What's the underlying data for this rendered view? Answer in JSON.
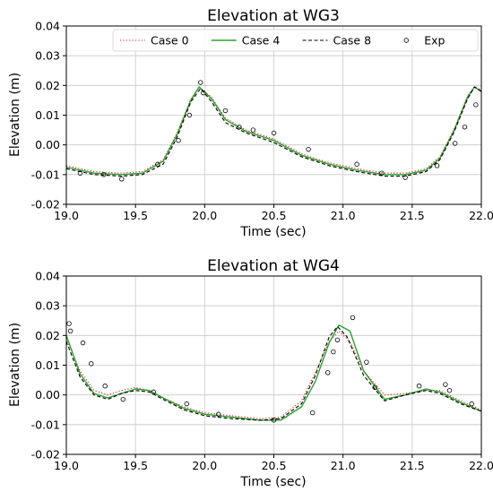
{
  "chart_data": [
    {
      "type": "line",
      "title": "Elevation at WG3",
      "xlabel": "Time (sec)",
      "ylabel": "Elevation (m)",
      "xlim": [
        19.0,
        22.0
      ],
      "ylim": [
        -0.02,
        0.04
      ],
      "xticks": [
        "19.0",
        "19.5",
        "20.0",
        "20.5",
        "21.0",
        "21.5",
        "22.0"
      ],
      "yticks": [
        "-0.02",
        "-0.01",
        "0.00",
        "0.01",
        "0.02",
        "0.03",
        "0.04"
      ],
      "grid": true,
      "legend": "top-right",
      "series": [
        {
          "name": "Case 0",
          "style": "dotted",
          "color": "#d62728",
          "x": [
            19.0,
            19.2,
            19.4,
            19.55,
            19.7,
            19.8,
            19.9,
            19.96,
            20.05,
            20.15,
            20.3,
            20.5,
            20.7,
            20.9,
            21.1,
            21.3,
            21.45,
            21.6,
            21.7,
            21.8,
            21.9,
            21.95,
            22.0
          ],
          "y": [
            -0.007,
            -0.009,
            -0.0095,
            -0.009,
            -0.005,
            0.004,
            0.0155,
            0.0195,
            0.016,
            0.009,
            0.005,
            0.002,
            -0.003,
            -0.006,
            -0.008,
            -0.0095,
            -0.0095,
            -0.008,
            -0.004,
            0.005,
            0.0165,
            0.0195,
            0.0185
          ]
        },
        {
          "name": "Case 4",
          "style": "solid",
          "color": "#2ca02c",
          "x": [
            19.0,
            19.2,
            19.4,
            19.55,
            19.7,
            19.8,
            19.9,
            19.96,
            20.05,
            20.15,
            20.3,
            20.5,
            20.7,
            20.9,
            21.1,
            21.3,
            21.45,
            21.6,
            21.7,
            21.8,
            21.9,
            21.95,
            22.0
          ],
          "y": [
            -0.0075,
            -0.0095,
            -0.01,
            -0.0095,
            -0.0055,
            0.0035,
            0.015,
            0.0195,
            0.0155,
            0.0085,
            0.0045,
            0.0015,
            -0.0035,
            -0.0065,
            -0.0085,
            -0.01,
            -0.01,
            -0.0085,
            -0.0045,
            0.0045,
            0.016,
            0.0195,
            0.018
          ]
        },
        {
          "name": "Case 8",
          "style": "dashed",
          "color": "#000000",
          "x": [
            19.0,
            19.2,
            19.4,
            19.55,
            19.7,
            19.8,
            19.9,
            19.97,
            20.05,
            20.15,
            20.3,
            20.5,
            20.7,
            20.9,
            21.1,
            21.3,
            21.45,
            21.6,
            21.7,
            21.8,
            21.9,
            21.95,
            22.0
          ],
          "y": [
            -0.008,
            -0.01,
            -0.0105,
            -0.01,
            -0.0065,
            0.0025,
            0.0145,
            0.019,
            0.0145,
            0.0075,
            0.004,
            0.0008,
            -0.004,
            -0.007,
            -0.009,
            -0.0105,
            -0.0105,
            -0.009,
            -0.005,
            0.004,
            0.0155,
            0.0195,
            0.018
          ]
        },
        {
          "name": "Exp",
          "style": "markers",
          "color": "#000000",
          "x": [
            19.1,
            19.27,
            19.4,
            19.66,
            19.81,
            19.89,
            19.97,
            19.99,
            20.15,
            20.25,
            20.35,
            20.5,
            20.75,
            21.1,
            21.28,
            21.45,
            21.68,
            21.81,
            21.88,
            21.96
          ],
          "y": [
            -0.0095,
            -0.01,
            -0.0115,
            -0.0065,
            0.0015,
            0.01,
            0.021,
            0.0175,
            0.0115,
            0.006,
            0.005,
            0.004,
            -0.0015,
            -0.0065,
            -0.0095,
            -0.011,
            -0.007,
            0.0005,
            0.006,
            0.0135
          ]
        }
      ]
    },
    {
      "type": "line",
      "title": "Elevation at WG4",
      "xlabel": "Time (sec)",
      "ylabel": "Elevation (m)",
      "xlim": [
        19.0,
        22.0
      ],
      "ylim": [
        -0.02,
        0.04
      ],
      "xticks": [
        "19.0",
        "19.5",
        "20.0",
        "20.5",
        "21.0",
        "21.5",
        "22.0"
      ],
      "yticks": [
        "-0.02",
        "-0.01",
        "0.00",
        "0.01",
        "0.02",
        "0.03",
        "0.04"
      ],
      "grid": true,
      "series": [
        {
          "name": "Case 0",
          "style": "dotted",
          "color": "#d62728",
          "x": [
            19.0,
            19.1,
            19.2,
            19.3,
            19.4,
            19.5,
            19.6,
            19.7,
            19.85,
            20.0,
            20.2,
            20.4,
            20.55,
            20.7,
            20.8,
            20.9,
            20.97,
            21.05,
            21.15,
            21.3,
            21.45,
            21.6,
            21.7,
            21.85,
            22.0
          ],
          "y": [
            0.019,
            0.008,
            0.0015,
            0.0,
            0.0015,
            0.0025,
            0.0015,
            -0.001,
            -0.004,
            -0.006,
            -0.007,
            -0.008,
            -0.0075,
            -0.002,
            0.0075,
            0.018,
            0.0215,
            0.018,
            0.008,
            0.0,
            0.0005,
            0.0015,
            0.0015,
            -0.002,
            -0.005
          ]
        },
        {
          "name": "Case 4",
          "style": "solid",
          "color": "#2ca02c",
          "x": [
            19.0,
            19.1,
            19.2,
            19.3,
            19.4,
            19.5,
            19.6,
            19.7,
            19.85,
            20.0,
            20.2,
            20.4,
            20.55,
            20.7,
            20.8,
            20.9,
            20.97,
            21.05,
            21.15,
            21.3,
            21.45,
            21.6,
            21.7,
            21.85,
            22.0
          ],
          "y": [
            0.02,
            0.007,
            0.0005,
            -0.001,
            0.0005,
            0.002,
            0.0015,
            -0.001,
            -0.0045,
            -0.0065,
            -0.0075,
            -0.0085,
            -0.0085,
            -0.004,
            0.0045,
            0.0175,
            0.0235,
            0.0215,
            0.008,
            -0.0015,
            0.0,
            0.002,
            0.001,
            -0.0025,
            -0.0055
          ]
        },
        {
          "name": "Case 8",
          "style": "dashed",
          "color": "#000000",
          "x": [
            19.0,
            19.1,
            19.2,
            19.3,
            19.4,
            19.5,
            19.6,
            19.7,
            19.85,
            20.0,
            20.2,
            20.4,
            20.55,
            20.7,
            20.8,
            20.9,
            20.96,
            21.03,
            21.15,
            21.3,
            21.45,
            21.6,
            21.7,
            21.85,
            22.0
          ],
          "y": [
            0.018,
            0.006,
            0.0,
            -0.0015,
            0.0005,
            0.0015,
            0.001,
            -0.0015,
            -0.005,
            -0.007,
            -0.008,
            -0.0085,
            -0.008,
            -0.003,
            0.0065,
            0.0195,
            0.023,
            0.0195,
            0.0065,
            -0.002,
            0.0,
            0.0015,
            0.0005,
            -0.003,
            -0.0055
          ]
        },
        {
          "name": "Exp",
          "style": "markers",
          "color": "#000000",
          "x": [
            19.02,
            19.03,
            19.12,
            19.18,
            19.28,
            19.41,
            19.63,
            19.87,
            20.1,
            20.5,
            20.78,
            20.89,
            20.93,
            20.96,
            21.07,
            21.17,
            21.23,
            21.55,
            21.74,
            21.77,
            21.93
          ],
          "y": [
            0.024,
            0.0215,
            0.0175,
            0.0105,
            0.003,
            -0.0015,
            0.001,
            -0.003,
            -0.0065,
            -0.0085,
            -0.006,
            0.0075,
            0.0145,
            0.0185,
            0.026,
            0.011,
            0.0025,
            0.003,
            0.0035,
            0.0015,
            -0.003
          ]
        }
      ]
    }
  ]
}
